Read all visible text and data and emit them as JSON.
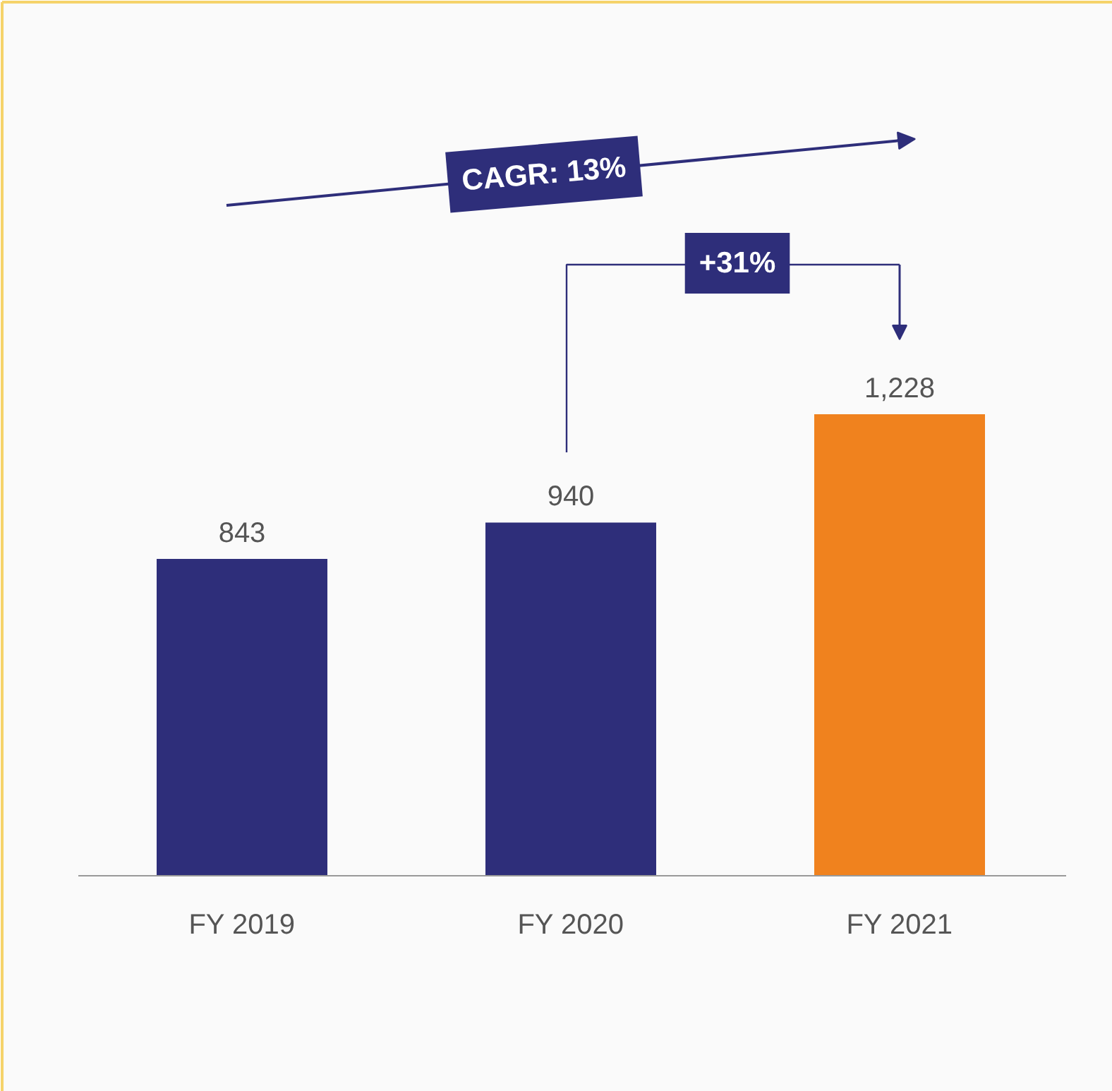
{
  "chart_data": {
    "type": "bar",
    "categories": [
      "FY 2019",
      "FY 2020",
      "FY 2021"
    ],
    "values": [
      843,
      940,
      1228
    ],
    "colors": [
      "#2e2e7a",
      "#2e2e7a",
      "#f0821e"
    ],
    "value_labels": [
      "843",
      "940",
      "1,228"
    ],
    "annotations": [
      "CAGR: 13%",
      "+31%"
    ]
  }
}
